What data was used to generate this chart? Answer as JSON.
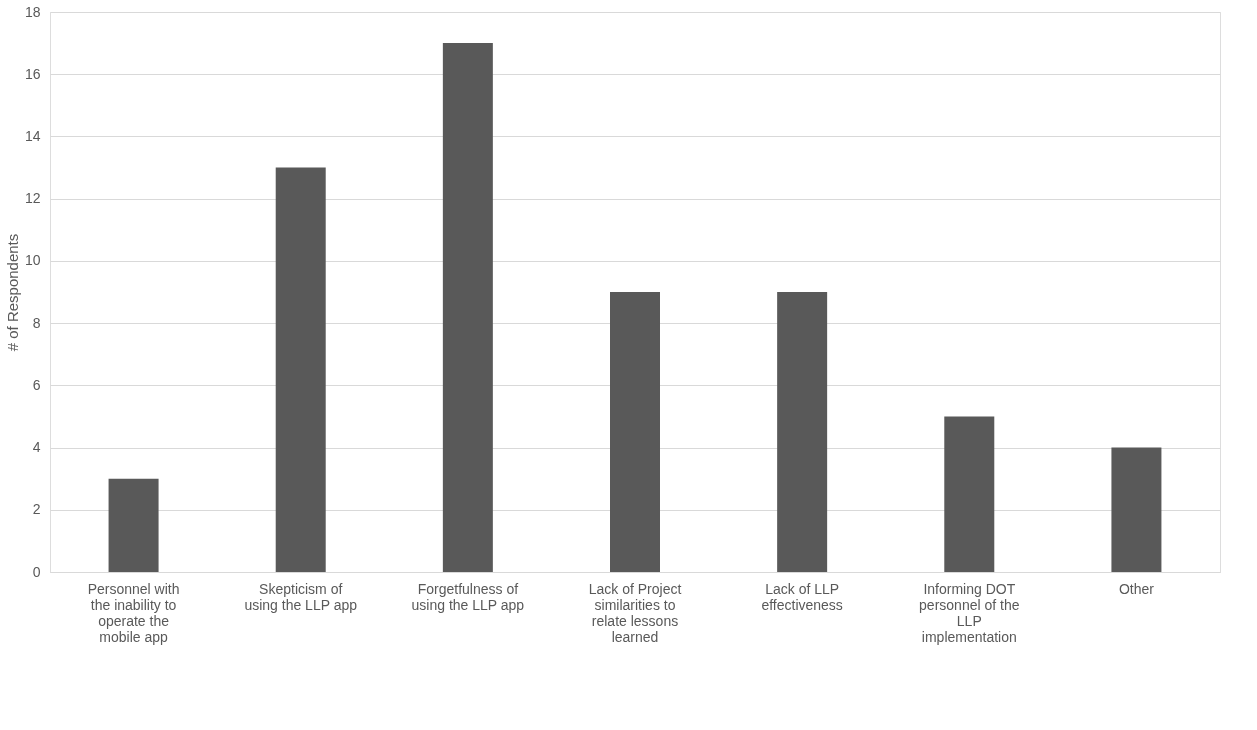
{
  "chart_data": {
    "type": "bar",
    "ylabel": "# of Respondents",
    "categories": [
      "Personnel with the inability to operate the mobile app",
      "Skepticism of using the LLP app",
      "Forgetfulness of using the LLP app",
      "Lack of Project similarities to relate lessons learned",
      "Lack of LLP effectiveness",
      "Informing DOT personnel of the LLP implementation",
      "Other"
    ],
    "values": [
      3,
      13,
      17,
      9,
      9,
      5,
      4
    ],
    "color": "#595959",
    "ylim": [
      0,
      18
    ],
    "yticks": [
      0,
      2,
      4,
      6,
      8,
      10,
      12,
      14,
      16,
      18
    ],
    "grid": "y"
  }
}
